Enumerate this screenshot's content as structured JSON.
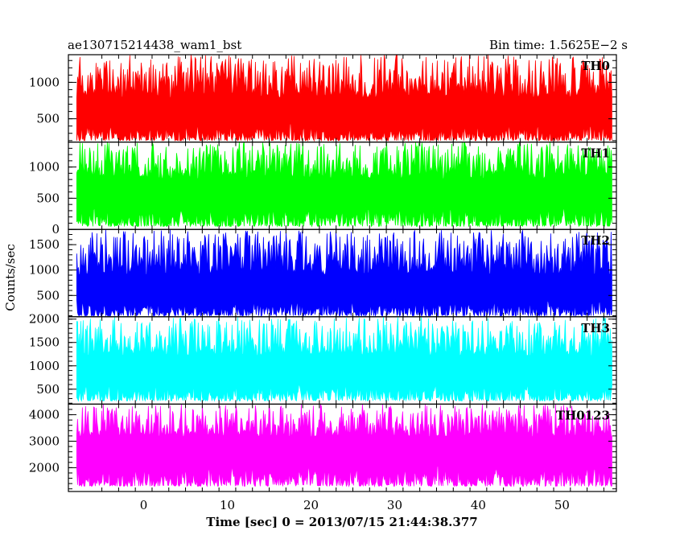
{
  "chart_data": {
    "type": "line",
    "title_left": "ae130715214438_wam1_bst",
    "title_right": "Bin time: 1.5625E−2 s",
    "xlabel": "Time [sec] 0 = 2013/07/15 21:44:38.377",
    "ylabel": "Counts/sec",
    "xlim": [
      -9,
      56.5
    ],
    "data_x_range": [
      -8,
      56
    ],
    "x_ticks": [
      0,
      10,
      20,
      30,
      40,
      50
    ],
    "x_tick_labels": [
      "0",
      "10",
      "20",
      "30",
      "40",
      "50"
    ],
    "grid": false,
    "panels": [
      {
        "name": "TH0",
        "color": "#ff0000",
        "ylim": [
          180,
          1380
        ],
        "y_ticks": [
          500,
          1000
        ],
        "y_tick_labels": [
          "500",
          "1000"
        ],
        "approx_min": 200,
        "approx_max": 1380,
        "approx_mean": 650
      },
      {
        "name": "TH1",
        "color": "#00ff00",
        "ylim": [
          0,
          1400
        ],
        "y_ticks": [
          0,
          500,
          1000
        ],
        "y_tick_labels": [
          "0",
          "500",
          "1000"
        ],
        "approx_min": 50,
        "approx_max": 1400,
        "approx_mean": 650
      },
      {
        "name": "TH2",
        "color": "#0000ff",
        "ylim": [
          80,
          1800
        ],
        "y_ticks": [
          500,
          1000,
          1500
        ],
        "y_tick_labels": [
          "500",
          "1000",
          "1500"
        ],
        "approx_min": 100,
        "approx_max": 1800,
        "approx_mean": 700
      },
      {
        "name": "TH3",
        "color": "#00ffff",
        "ylim": [
          180,
          2050
        ],
        "y_ticks": [
          500,
          1000,
          1500,
          2000
        ],
        "y_tick_labels": [
          "500",
          "1000",
          "1500",
          "2000"
        ],
        "approx_min": 250,
        "approx_max": 2050,
        "approx_mean": 1000
      },
      {
        "name": "TH0123",
        "color": "#ff00ff",
        "ylim": [
          1100,
          4400
        ],
        "y_ticks": [
          2000,
          3000,
          4000
        ],
        "y_tick_labels": [
          "2000",
          "3000",
          "4000"
        ],
        "approx_min": 1300,
        "approx_max": 4400,
        "approx_mean": 2800
      }
    ]
  }
}
